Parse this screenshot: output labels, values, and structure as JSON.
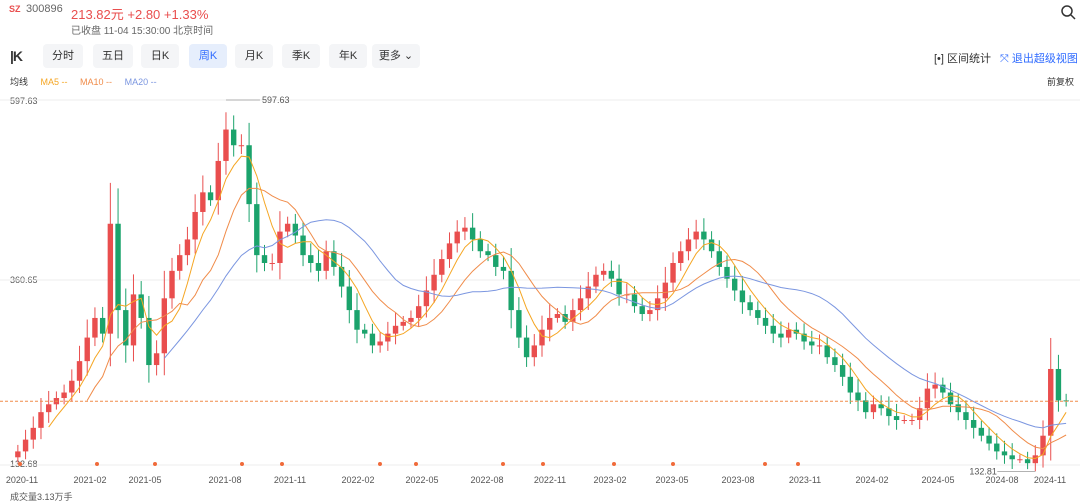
{
  "header": {
    "market": "SZ",
    "code": "300896",
    "price": "213.82元",
    "change": "+2.80",
    "change_pct": "+1.33%",
    "status": "已收盘 11-04 15:30:00 北京时间"
  },
  "toolbar": {
    "tabs": [
      "分时",
      "五日",
      "日K",
      "周K",
      "月K",
      "季K",
      "年K",
      "更多"
    ],
    "active": "周K",
    "range_stats": "区间统计",
    "exit_super": "退出超级视图"
  },
  "legend": {
    "label": "均线",
    "ma5": "MA5 --",
    "ma10": "MA10 --",
    "ma20": "MA20 --"
  },
  "adjust_label": "前复权",
  "volume_label": "成交量3.13万手",
  "colors": {
    "up": "#e94e4e",
    "down": "#1ba36c",
    "ma5": "#f5a623",
    "ma10": "#f08c4a",
    "ma20": "#7b96e0",
    "accent": "#2f6bff"
  },
  "chart_data": {
    "type": "candlestick",
    "y_axis_labels": [
      "597.63",
      "360.65",
      "132.68"
    ],
    "ylim": [
      132.68,
      597.63
    ],
    "high_marker": "597.63",
    "low_marker": "132.81",
    "current_price": 213.82,
    "x_tick_labels": [
      "2020-11",
      "2021-02",
      "2021-05",
      "2021-08",
      "2021-11",
      "2022-02",
      "2022-05",
      "2022-08",
      "2022-11",
      "2023-02",
      "2023-05",
      "2023-08",
      "2023-11",
      "2024-02",
      "2024-05",
      "2024-08",
      "2024-11"
    ],
    "closes": [
      150,
      165,
      180,
      200,
      210,
      218,
      225,
      240,
      265,
      295,
      320,
      300,
      440,
      330,
      285,
      350,
      320,
      260,
      275,
      345,
      380,
      400,
      420,
      455,
      480,
      470,
      520,
      560,
      540,
      540,
      465,
      400,
      390,
      390,
      430,
      440,
      425,
      400,
      390,
      380,
      405,
      385,
      360,
      330,
      305,
      300,
      285,
      290,
      300,
      310,
      315,
      320,
      335,
      355,
      375,
      395,
      415,
      430,
      435,
      420,
      405,
      400,
      385,
      380,
      330,
      295,
      270,
      285,
      305,
      320,
      325,
      315,
      330,
      345,
      360,
      375,
      380,
      370,
      350,
      350,
      335,
      325,
      330,
      345,
      365,
      390,
      405,
      420,
      430,
      420,
      405,
      385,
      370,
      355,
      340,
      330,
      320,
      310,
      300,
      295,
      305,
      300,
      290,
      285,
      285,
      270,
      260,
      245,
      225,
      215,
      200,
      210,
      205,
      195,
      190,
      190,
      190,
      205,
      230,
      235,
      225,
      210,
      200,
      190,
      180,
      170,
      160,
      150,
      145,
      140,
      140,
      135,
      145,
      170,
      255,
      215,
      213.82
    ],
    "ma_lines": [
      "MA5",
      "MA10",
      "MA20"
    ]
  }
}
